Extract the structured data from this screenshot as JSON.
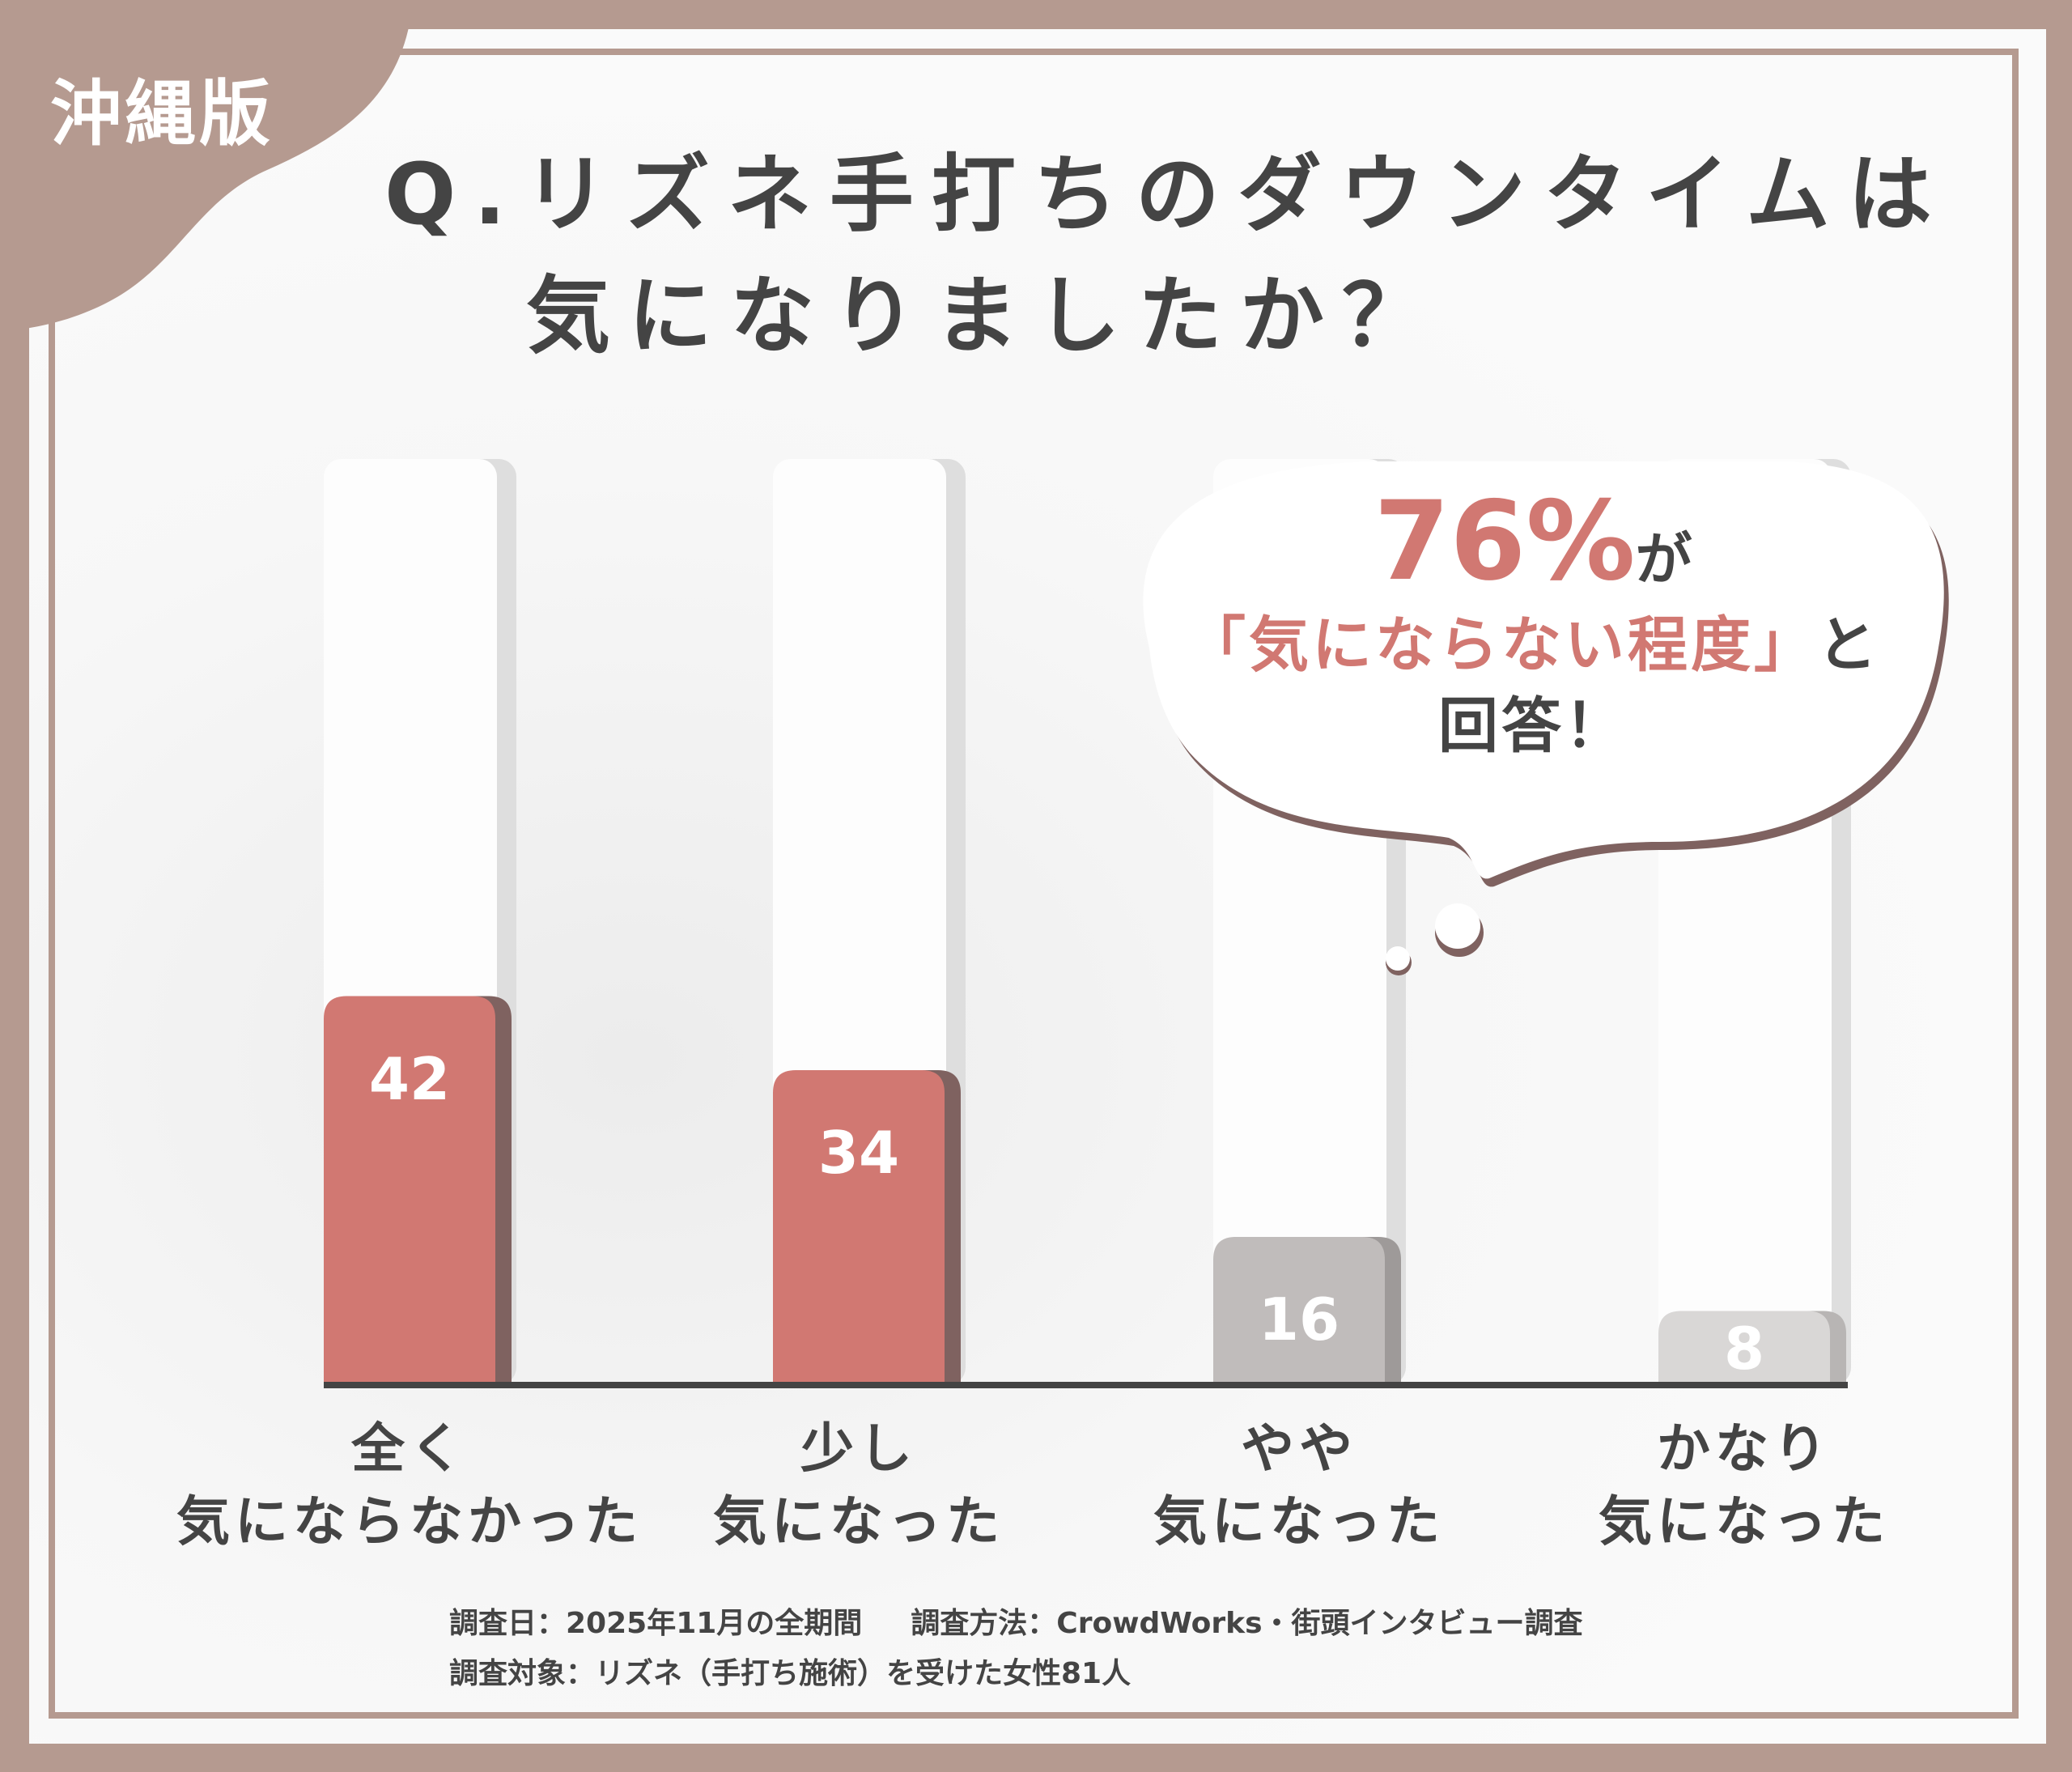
{
  "tag": "沖縄版",
  "title": {
    "line1": "Q.リズネ手打ちのダウンタイムは",
    "line2": "気になりましたか？"
  },
  "callout": {
    "percent": "76%",
    "ga": "が",
    "quote": "「気にならない程度」",
    "to": "と",
    "answer": "回答！"
  },
  "chart_data": {
    "type": "bar",
    "categories": [
      [
        "全く",
        "気にならなかった"
      ],
      [
        "少し",
        "気になった"
      ],
      [
        "やや",
        "気になった"
      ],
      [
        "かなり",
        "気になった"
      ]
    ],
    "values": [
      42,
      34,
      16,
      8
    ],
    "ylim": [
      0,
      100
    ],
    "colors": [
      "#d17872",
      "#d17872",
      "#c0bcbb",
      "#d9d7d6"
    ],
    "shadow_colors": [
      "#7f6260",
      "#7f6260",
      "#9e9a99",
      "#b8b5b4"
    ],
    "grid": false
  },
  "footer": {
    "date": "調査日：2025年11月の全期間",
    "method": "調査方法：CrowdWorks・街頭インタビュー調査",
    "target": "調査対象：リズネ（手打ち施術）を受けた女性81人"
  },
  "colors": {
    "background": "#b59a90",
    "accent": "#d17872",
    "text": "#444444"
  }
}
